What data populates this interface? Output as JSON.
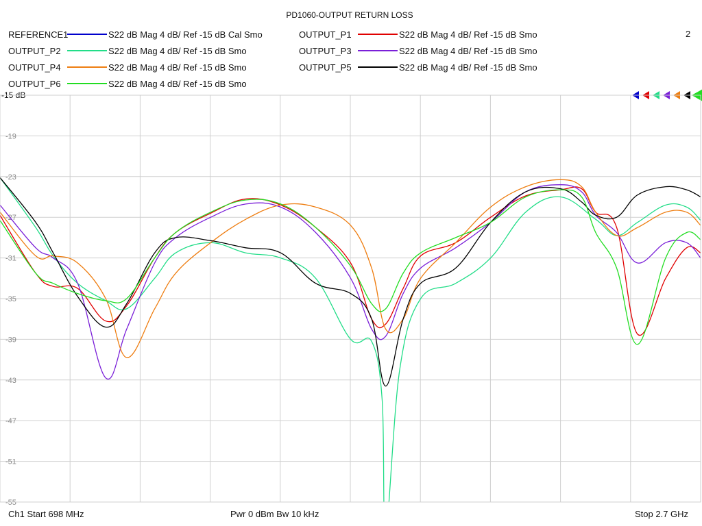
{
  "chart_data": {
    "type": "line",
    "title": "PD1060-OUTPUT RETURN LOSS",
    "window_number": "2",
    "ref_label": "-15 dB",
    "ylim": [
      -55,
      -15
    ],
    "ytick_labels": [
      "-19",
      "-23",
      "-27",
      "-31",
      "-35",
      "-39",
      "-43",
      "-47",
      "-51",
      "-55"
    ],
    "ytick_values": [
      -19,
      -23,
      -27,
      -31,
      -35,
      -39,
      -43,
      -47,
      -51,
      -55
    ],
    "xlim_mhz": [
      698,
      2700
    ],
    "x_divisions": 10,
    "grid": true,
    "footer": {
      "start": "Ch1  Start  698 MHz",
      "center": "Pwr  0 dBm  Bw  10 kHz",
      "stop": "Stop  2.7 GHz"
    },
    "legend": [
      {
        "name": "REFERENCE1",
        "desc": "S22  dB Mag  4 dB/ Ref -15 dB  Cal Smo",
        "color": "#0000cc"
      },
      {
        "name": "OUTPUT_P1",
        "desc": "S22  dB Mag  4 dB/ Ref -15 dB  Smo",
        "color": "#e00000"
      },
      {
        "name": "OUTPUT_P2",
        "desc": "S22  dB Mag  4 dB/ Ref -15 dB  Smo",
        "color": "#22dd88"
      },
      {
        "name": "OUTPUT_P3",
        "desc": "S22  dB Mag  4 dB/ Ref -15 dB  Smo",
        "color": "#7a1fd8"
      },
      {
        "name": "OUTPUT_P4",
        "desc": "S22  dB Mag  4 dB/ Ref -15 dB  Smo",
        "color": "#ee7d10"
      },
      {
        "name": "OUTPUT_P5",
        "desc": "S22  dB Mag  4 dB/ Ref -15 dB  Smo",
        "color": "#000000"
      },
      {
        "name": "OUTPUT_P6",
        "desc": "S22  dB Mag  4 dB/ Ref -15 dB  Smo",
        "color": "#22dd22"
      }
    ],
    "series": [
      {
        "name": "OUTPUT_P1",
        "color": "#e00000",
        "x": [
          698,
          800,
          850,
          920,
          1000,
          1060,
          1140,
          1200,
          1300,
          1400,
          1500,
          1600,
          1700,
          1760,
          1800,
          1850,
          1900,
          2000,
          2100,
          2200,
          2300,
          2360,
          2400,
          2460,
          2520,
          2600,
          2660,
          2700
        ],
        "y": [
          -26.8,
          -32.5,
          -33.8,
          -34.0,
          -37.2,
          -35.7,
          -31.0,
          -28.5,
          -26.6,
          -25.2,
          -25.8,
          -28.0,
          -31.5,
          -37.0,
          -37.5,
          -34.0,
          -30.8,
          -29.5,
          -27.0,
          -24.9,
          -24.3,
          -24.2,
          -26.5,
          -28.0,
          -38.5,
          -33.0,
          -30.0,
          -30.5
        ]
      },
      {
        "name": "OUTPUT_P2",
        "color": "#22dd88",
        "x": [
          698,
          800,
          850,
          920,
          1000,
          1060,
          1140,
          1200,
          1300,
          1400,
          1500,
          1600,
          1700,
          1760,
          1790,
          1800,
          1840,
          1900,
          2000,
          2100,
          2200,
          2300,
          2400,
          2460,
          2520,
          2600,
          2660,
          2700
        ],
        "y": [
          -23.1,
          -28.0,
          -30.8,
          -33.5,
          -35.2,
          -36.0,
          -33.0,
          -30.5,
          -29.5,
          -30.5,
          -31.0,
          -33.0,
          -39.0,
          -39.2,
          -45.0,
          -58.0,
          -42.0,
          -35.0,
          -33.5,
          -31.0,
          -26.5,
          -25.0,
          -27.2,
          -28.8,
          -27.5,
          -25.8,
          -26.0,
          -27.3
        ]
      },
      {
        "name": "OUTPUT_P3",
        "color": "#7a1fd8",
        "x": [
          698,
          800,
          850,
          920,
          1000,
          1060,
          1140,
          1200,
          1300,
          1400,
          1500,
          1600,
          1700,
          1760,
          1800,
          1850,
          1900,
          2000,
          2100,
          2200,
          2300,
          2360,
          2400,
          2460,
          2520,
          2600,
          2660,
          2700
        ],
        "y": [
          -25.8,
          -30.0,
          -31.0,
          -33.5,
          -42.8,
          -38.0,
          -31.5,
          -29.0,
          -27.0,
          -25.7,
          -26.0,
          -28.5,
          -33.0,
          -38.0,
          -38.7,
          -34.5,
          -32.0,
          -30.0,
          -27.5,
          -24.5,
          -23.8,
          -24.5,
          -26.8,
          -28.5,
          -31.5,
          -29.5,
          -29.5,
          -31.0
        ]
      },
      {
        "name": "OUTPUT_P4",
        "color": "#ee7d10",
        "x": [
          698,
          800,
          850,
          920,
          1000,
          1060,
          1140,
          1200,
          1300,
          1400,
          1500,
          1600,
          1700,
          1760,
          1800,
          1850,
          1900,
          2000,
          2100,
          2200,
          2300,
          2360,
          2400,
          2460,
          2520,
          2600,
          2660,
          2700
        ],
        "y": [
          -26.5,
          -30.8,
          -30.8,
          -31.5,
          -35.0,
          -40.8,
          -36.0,
          -32.5,
          -29.5,
          -27.2,
          -25.8,
          -26.0,
          -27.8,
          -32.0,
          -38.0,
          -37.0,
          -33.0,
          -29.5,
          -26.0,
          -24.0,
          -23.3,
          -24.0,
          -26.5,
          -28.8,
          -28.0,
          -26.5,
          -26.5,
          -27.8
        ]
      },
      {
        "name": "OUTPUT_P5",
        "color": "#000000",
        "x": [
          698,
          800,
          850,
          920,
          1000,
          1060,
          1140,
          1200,
          1300,
          1400,
          1500,
          1600,
          1700,
          1760,
          1800,
          1850,
          1900,
          2000,
          2100,
          2200,
          2300,
          2360,
          2400,
          2460,
          2520,
          2600,
          2660,
          2700
        ],
        "y": [
          -23.1,
          -27.5,
          -30.5,
          -34.8,
          -37.8,
          -35.5,
          -30.5,
          -29.0,
          -29.3,
          -30.0,
          -30.5,
          -33.5,
          -34.5,
          -37.0,
          -43.6,
          -37.0,
          -33.5,
          -32.0,
          -27.5,
          -24.5,
          -24.2,
          -25.5,
          -26.8,
          -27.0,
          -24.8,
          -24.0,
          -24.3,
          -25.0
        ]
      },
      {
        "name": "OUTPUT_P6",
        "color": "#22dd22",
        "x": [
          698,
          800,
          850,
          920,
          1000,
          1060,
          1140,
          1200,
          1300,
          1400,
          1500,
          1600,
          1700,
          1760,
          1800,
          1850,
          1900,
          2000,
          2100,
          2200,
          2300,
          2360,
          2400,
          2460,
          2520,
          2600,
          2660,
          2700
        ],
        "y": [
          -27.3,
          -32.5,
          -33.5,
          -34.5,
          -35.2,
          -35.0,
          -31.0,
          -28.5,
          -26.5,
          -25.3,
          -25.7,
          -28.0,
          -31.8,
          -35.5,
          -36.0,
          -32.5,
          -30.5,
          -29.0,
          -27.5,
          -25.0,
          -24.3,
          -25.0,
          -28.5,
          -32.0,
          -39.5,
          -31.0,
          -28.5,
          -29.2
        ]
      }
    ]
  }
}
